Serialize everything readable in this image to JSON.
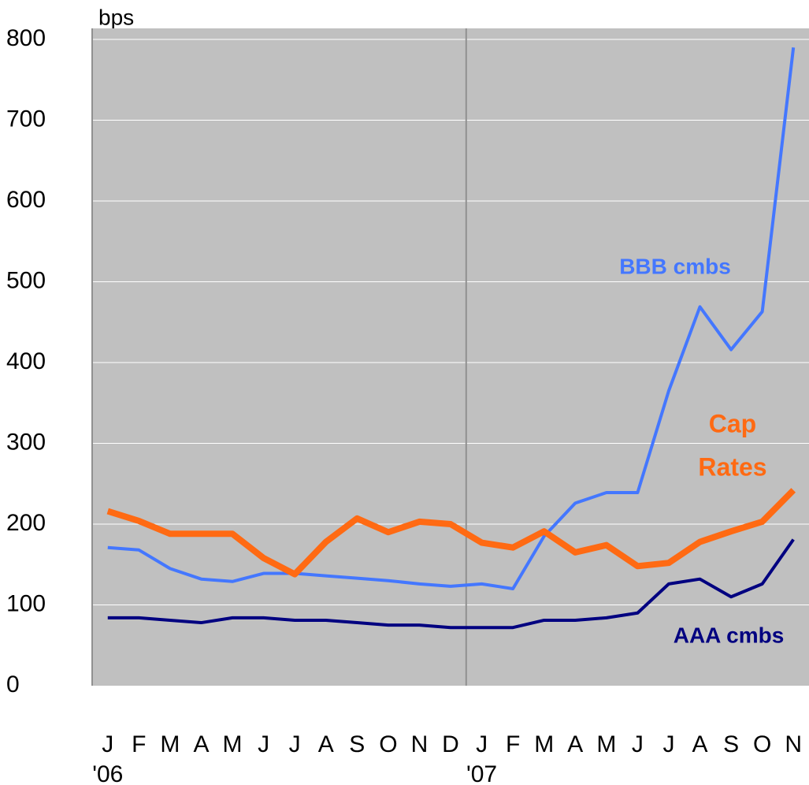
{
  "chart_data": {
    "type": "line",
    "y_label": "bps",
    "categories": [
      "J",
      "F",
      "M",
      "A",
      "M",
      "J",
      "J",
      "A",
      "S",
      "O",
      "N",
      "D",
      "J",
      "F",
      "M",
      "A",
      "M",
      "J",
      "J",
      "A",
      "S",
      "O",
      "N"
    ],
    "category_sublabels": [
      "'06",
      null,
      null,
      null,
      null,
      null,
      null,
      null,
      null,
      null,
      null,
      null,
      "'07",
      null,
      null,
      null,
      null,
      null,
      null,
      null,
      null,
      null,
      null
    ],
    "series": [
      {
        "label_lines": [
          "BBB cmbs"
        ],
        "color": "#4477ff",
        "width": 4,
        "values": [
          171,
          168,
          145,
          132,
          129,
          139,
          139,
          136,
          133,
          130,
          126,
          123,
          126,
          120,
          185,
          226,
          239,
          239,
          365,
          469,
          416,
          463,
          790
        ]
      },
      {
        "label_lines": [
          "Cap",
          "Rates"
        ],
        "color": "#ff6a13",
        "width": 8,
        "values": [
          216,
          204,
          188,
          188,
          188,
          158,
          138,
          178,
          207,
          190,
          203,
          200,
          177,
          171,
          191,
          165,
          174,
          148,
          152,
          178,
          191,
          203,
          242
        ]
      },
      {
        "label_lines": [
          "AAA cmbs"
        ],
        "color": "#000080",
        "width": 4,
        "values": [
          84,
          84,
          81,
          78,
          84,
          84,
          81,
          81,
          78,
          75,
          75,
          72,
          72,
          72,
          81,
          81,
          84,
          90,
          126,
          132,
          110,
          126,
          181
        ]
      }
    ],
    "ylim": [
      0,
      800
    ],
    "yticks": [
      0,
      100,
      200,
      300,
      400,
      500,
      600,
      700,
      800
    ],
    "grid": true,
    "background": "#c0c0c0"
  }
}
